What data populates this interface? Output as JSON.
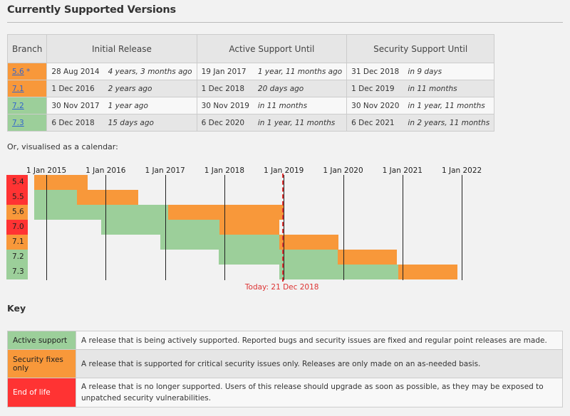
{
  "heading": "Currently Supported Versions",
  "table": {
    "headers": {
      "branch": "Branch",
      "initial": "Initial Release",
      "active": "Active Support Until",
      "security": "Security Support Until"
    },
    "rows": [
      {
        "branch": "5.6",
        "mark": "*",
        "status": "security",
        "release_date": "28 Aug 2014",
        "release_ago": "4 years, 3 months ago",
        "active_date": "19 Jan 2017",
        "active_rel": "1 year, 11 months ago",
        "security_date": "31 Dec 2018",
        "security_rel": "in 9 days"
      },
      {
        "branch": "7.1",
        "mark": "",
        "status": "security",
        "release_date": "1 Dec 2016",
        "release_ago": "2 years ago",
        "active_date": "1 Dec 2018",
        "active_rel": "20 days ago",
        "security_date": "1 Dec 2019",
        "security_rel": "in 11 months"
      },
      {
        "branch": "7.2",
        "mark": "",
        "status": "active",
        "release_date": "30 Nov 2017",
        "release_ago": "1 year ago",
        "active_date": "30 Nov 2019",
        "active_rel": "in 11 months",
        "security_date": "30 Nov 2020",
        "security_rel": "in 1 year, 11 months"
      },
      {
        "branch": "7.3",
        "mark": "",
        "status": "active",
        "release_date": "6 Dec 2018",
        "release_ago": "15 days ago",
        "active_date": "6 Dec 2020",
        "active_rel": "in 1 year, 11 months",
        "security_date": "6 Dec 2021",
        "security_rel": "in 2 years, 11 months"
      }
    ]
  },
  "calendar_caption": "Or, visualised as a calendar:",
  "chart_data": {
    "type": "gantt",
    "axis_range_years": [
      2014.8,
      2022.0
    ],
    "year_ticks": [
      {
        "value": 2015,
        "label": "1 Jan 2015"
      },
      {
        "value": 2016,
        "label": "1 Jan 2016"
      },
      {
        "value": 2017,
        "label": "1 Jan 2017"
      },
      {
        "value": 2018,
        "label": "1 Jan 2018"
      },
      {
        "value": 2019,
        "label": "1 Jan 2019"
      },
      {
        "value": 2020,
        "label": "1 Jan 2020"
      },
      {
        "value": 2021,
        "label": "1 Jan 2021"
      },
      {
        "value": 2022,
        "label": "1 Jan 2022"
      }
    ],
    "today": {
      "value": 2018.97,
      "label": "Today: 21 Dec 2018"
    },
    "branches": [
      {
        "name": "5.4",
        "status": "eol",
        "release": 2014.8,
        "active_end": 2014.8,
        "security_end": 2015.7
      },
      {
        "name": "5.5",
        "status": "eol",
        "release": 2014.8,
        "active_end": 2015.52,
        "security_end": 2016.55
      },
      {
        "name": "5.6",
        "status": "security",
        "release": 2014.8,
        "active_end": 2017.05,
        "security_end": 2019.0
      },
      {
        "name": "7.0",
        "status": "eol",
        "release": 2015.92,
        "active_end": 2017.92,
        "security_end": 2018.92
      },
      {
        "name": "7.1",
        "status": "security",
        "release": 2016.92,
        "active_end": 2018.92,
        "security_end": 2019.92
      },
      {
        "name": "7.2",
        "status": "active",
        "release": 2017.91,
        "active_end": 2019.91,
        "security_end": 2020.91
      },
      {
        "name": "7.3",
        "status": "active",
        "release": 2018.93,
        "active_end": 2020.93,
        "security_end": 2021.93
      }
    ]
  },
  "key": {
    "title": "Key",
    "items": [
      {
        "label": "Active support",
        "class": "active",
        "desc": "A release that is being actively supported. Reported bugs and security issues are fixed and regular point releases are made."
      },
      {
        "label": "Security fixes only",
        "class": "security",
        "desc": "A release that is supported for critical security issues only. Releases are only made on an as-needed basis."
      },
      {
        "label": "End of life",
        "class": "eol",
        "desc": "A release that is no longer supported. Users of this release should upgrade as soon as possible, as they may be exposed to unpatched security vulnerabilities."
      }
    ]
  },
  "colors": {
    "active": "#9ccf9a",
    "security": "#f8983a",
    "eol": "#ff3333",
    "today": "#dd3333"
  }
}
